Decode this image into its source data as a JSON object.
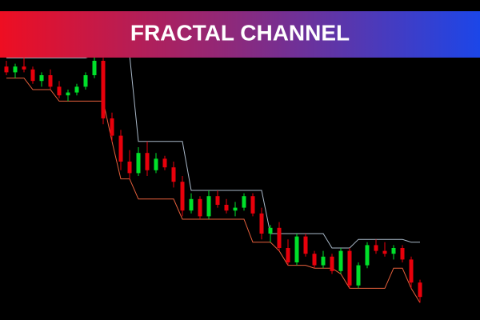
{
  "chart_data": {
    "type": "candlestick",
    "title": "FRACTAL CHANNEL",
    "ylim": [
      0,
      100
    ],
    "up_color": "#00e02a",
    "down_color": "#e8000b",
    "upper_color": "#a9b8c8",
    "lower_color": "#e8603c",
    "candles": [
      [
        88,
        90,
        85,
        86
      ],
      [
        86,
        89,
        84,
        88
      ],
      [
        88,
        91,
        86,
        87
      ],
      [
        87,
        88,
        82,
        83
      ],
      [
        83,
        86,
        81,
        85
      ],
      [
        85,
        87,
        80,
        81
      ],
      [
        81,
        83,
        77,
        78
      ],
      [
        78,
        80,
        76,
        79
      ],
      [
        79,
        82,
        78,
        81
      ],
      [
        81,
        86,
        80,
        85
      ],
      [
        85,
        92,
        84,
        90
      ],
      [
        90,
        91,
        68,
        70
      ],
      [
        70,
        72,
        62,
        64
      ],
      [
        64,
        66,
        52,
        55
      ],
      [
        55,
        59,
        49,
        51
      ],
      [
        51,
        60,
        50,
        58
      ],
      [
        58,
        62,
        50,
        52
      ],
      [
        52,
        58,
        51,
        56
      ],
      [
        56,
        57,
        52,
        53
      ],
      [
        53,
        55,
        46,
        48
      ],
      [
        48,
        50,
        36,
        38
      ],
      [
        38,
        44,
        37,
        42
      ],
      [
        42,
        43,
        35,
        36
      ],
      [
        36,
        45,
        35,
        43
      ],
      [
        43,
        45,
        39,
        40
      ],
      [
        40,
        42,
        37,
        38
      ],
      [
        38,
        41,
        36,
        39
      ],
      [
        39,
        44,
        38,
        43
      ],
      [
        43,
        44,
        36,
        37
      ],
      [
        37,
        39,
        28,
        30
      ],
      [
        30,
        33,
        27,
        32
      ],
      [
        32,
        34,
        24,
        25
      ],
      [
        25,
        28,
        19,
        20
      ],
      [
        20,
        30,
        19,
        29
      ],
      [
        29,
        30,
        22,
        23
      ],
      [
        23,
        24,
        18,
        19
      ],
      [
        19,
        24,
        18,
        22
      ],
      [
        22,
        23,
        16,
        17
      ],
      [
        17,
        25,
        16,
        24
      ],
      [
        24,
        25,
        11,
        12
      ],
      [
        12,
        20,
        11,
        19
      ],
      [
        19,
        27,
        18,
        26
      ],
      [
        26,
        28,
        23,
        24
      ],
      [
        24,
        27,
        22,
        23
      ],
      [
        23,
        26,
        21,
        25
      ],
      [
        25,
        26,
        20,
        21
      ],
      [
        21,
        22,
        11,
        13
      ],
      [
        13,
        14,
        6,
        8
      ]
    ],
    "channel_upper": [
      91,
      91,
      91,
      91,
      91,
      91,
      91,
      91,
      91,
      91,
      92,
      92,
      92,
      92,
      92,
      62,
      62,
      62,
      62,
      62,
      62,
      45,
      45,
      45,
      45,
      45,
      45,
      45,
      45,
      45,
      30,
      30,
      30,
      30,
      30,
      30,
      30,
      25,
      25,
      25,
      28,
      28,
      28,
      28,
      28,
      28,
      27,
      27
    ],
    "channel_lower": [
      84,
      84,
      84,
      80,
      80,
      80,
      76,
      76,
      76,
      76,
      76,
      76,
      62,
      49,
      49,
      42,
      42,
      42,
      42,
      42,
      35,
      35,
      35,
      35,
      35,
      35,
      35,
      35,
      27,
      27,
      27,
      24,
      19,
      19,
      19,
      18,
      18,
      18,
      16,
      11,
      11,
      11,
      11,
      11,
      18,
      18,
      11,
      6
    ]
  }
}
